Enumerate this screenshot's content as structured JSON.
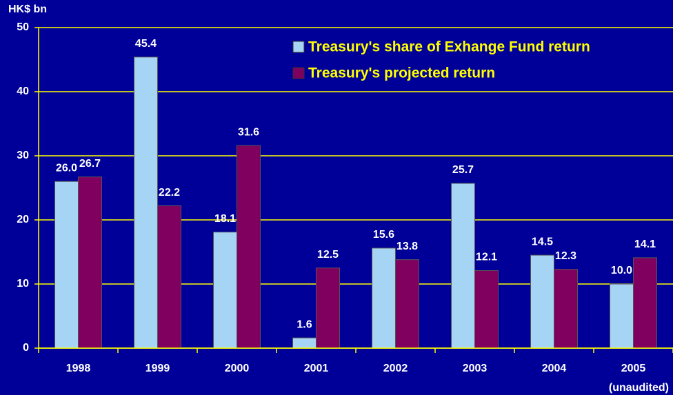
{
  "chart_data": {
    "type": "bar",
    "y_label": "HK$ bn",
    "categories": [
      "1998",
      "1999",
      "2000",
      "2001",
      "2002",
      "2003",
      "2004",
      "2005"
    ],
    "annotation": "(unaudited)",
    "series": [
      {
        "name": "Treasury's share of Exhange Fund return",
        "color": "#a6d4f5",
        "values": [
          26.0,
          45.4,
          18.1,
          1.6,
          15.6,
          25.7,
          14.5,
          10.0
        ],
        "value_labels": [
          "26.0",
          "45.4",
          "18.1",
          "1.6",
          "15.6",
          "25.7",
          "14.5",
          "10.0"
        ]
      },
      {
        "name": "Treasury's projected return",
        "color": "#800060",
        "values": [
          26.7,
          22.2,
          31.6,
          12.5,
          13.8,
          12.1,
          12.3,
          14.1
        ],
        "value_labels": [
          "26.7",
          "22.2",
          "31.6",
          "12.5",
          "13.8",
          "12.1",
          "12.3",
          "14.1"
        ]
      }
    ],
    "ylim": [
      0,
      50
    ],
    "yticks": [
      0,
      10,
      20,
      30,
      40,
      50
    ],
    "grid": true,
    "legend": "top-right"
  }
}
